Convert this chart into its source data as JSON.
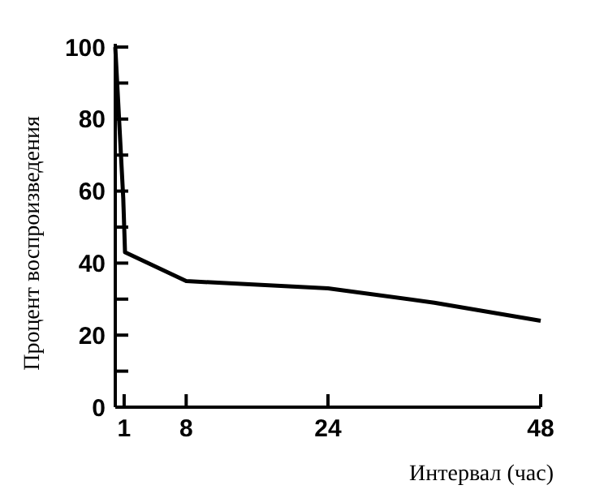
{
  "chart_data": {
    "type": "line",
    "xlabel": "Интервал (час)",
    "ylabel": "Процент воспроизведения",
    "x": [
      0,
      0.9,
      1.1,
      8,
      24,
      36,
      48
    ],
    "series": [
      {
        "color": "#000000",
        "values": [
          100,
          58,
          43,
          35,
          33,
          29,
          24
        ]
      }
    ],
    "xlim": [
      0,
      48
    ],
    "xticks": [
      1,
      8,
      24,
      48
    ],
    "ylim": [
      0,
      100
    ],
    "yticks": [
      0,
      {
        "value": 10,
        "label": null
      },
      20,
      {
        "value": 30,
        "label": null
      },
      40,
      {
        "value": 50,
        "label": null
      },
      60,
      {
        "value": 70,
        "label": null
      },
      80,
      {
        "value": 90,
        "label": null
      },
      100
    ],
    "grid": false,
    "marker": "none",
    "line_style": "solid"
  }
}
